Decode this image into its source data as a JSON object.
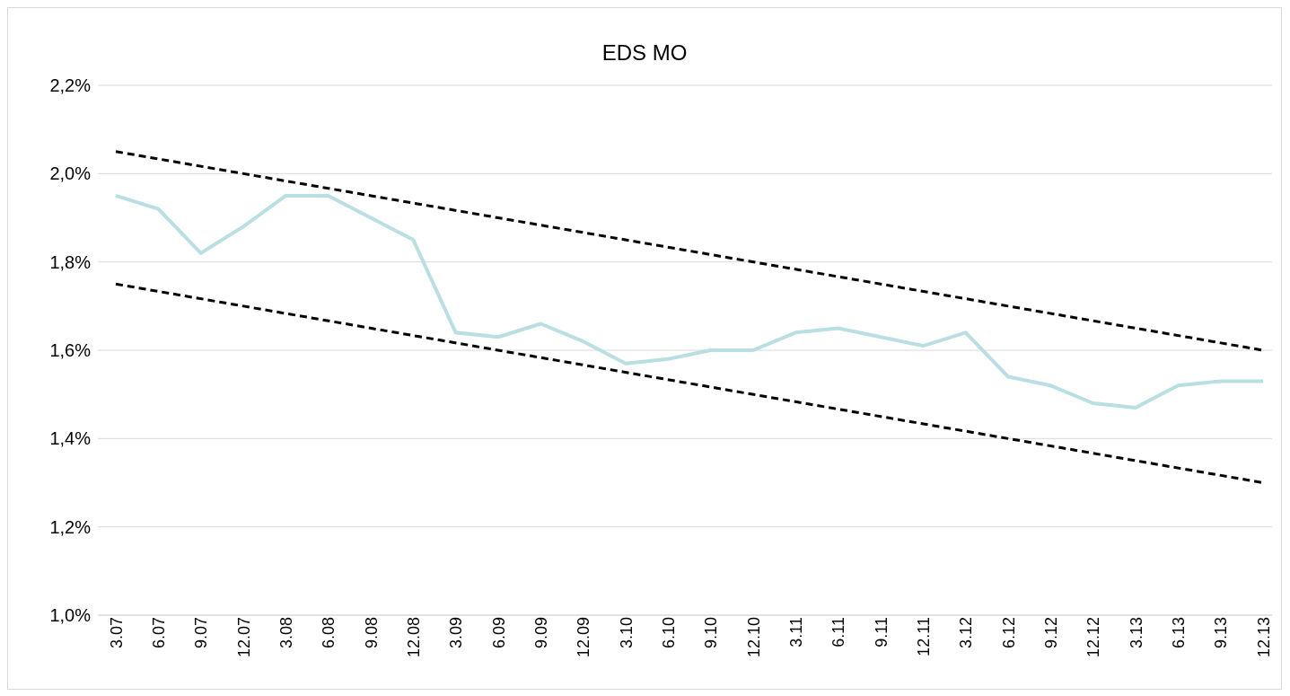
{
  "chart_data": {
    "type": "line",
    "title": "EDS MO",
    "categories": [
      "3.07",
      "6.07",
      "9.07",
      "12.07",
      "3.08",
      "6.08",
      "9.08",
      "12.08",
      "3.09",
      "6.09",
      "9.09",
      "12.09",
      "3.10",
      "6.10",
      "9.10",
      "12.10",
      "3.11",
      "6.11",
      "9.11",
      "12.11",
      "3.12",
      "6.12",
      "9.12",
      "12.12",
      "3.13",
      "6.13",
      "9.13",
      "12.13"
    ],
    "series": [
      {
        "color": "#b9dfe3",
        "line_style": "solid",
        "values": [
          1.95,
          1.92,
          1.82,
          1.88,
          1.95,
          1.95,
          1.9,
          1.85,
          1.64,
          1.63,
          1.66,
          1.62,
          1.57,
          1.58,
          1.6,
          1.6,
          1.64,
          1.65,
          1.63,
          1.61,
          1.64,
          1.54,
          1.52,
          1.48,
          1.47,
          1.52,
          1.53,
          1.53
        ]
      },
      {
        "color": "#000000",
        "line_style": "dashed",
        "values": [
          2.05,
          null,
          null,
          null,
          null,
          null,
          null,
          null,
          null,
          null,
          null,
          null,
          null,
          null,
          null,
          null,
          null,
          null,
          null,
          null,
          null,
          null,
          null,
          null,
          null,
          null,
          null,
          1.6
        ]
      },
      {
        "color": "#000000",
        "line_style": "dashed",
        "values": [
          1.75,
          null,
          null,
          null,
          null,
          null,
          null,
          null,
          null,
          null,
          null,
          null,
          null,
          null,
          null,
          null,
          null,
          null,
          null,
          null,
          null,
          null,
          null,
          null,
          null,
          null,
          null,
          1.3
        ]
      }
    ],
    "ylim": [
      1.0,
      2.2
    ],
    "yticks": [
      {
        "value": 1.0,
        "label": "1,0%"
      },
      {
        "value": 1.2,
        "label": "1,2%"
      },
      {
        "value": 1.4,
        "label": "1,4%"
      },
      {
        "value": 1.6,
        "label": "1,6%"
      },
      {
        "value": 1.8,
        "label": "1,8%"
      },
      {
        "value": 2.0,
        "label": "2,0%"
      },
      {
        "value": 2.2,
        "label": "2,2%"
      }
    ],
    "grid": "y",
    "marker": "none"
  }
}
